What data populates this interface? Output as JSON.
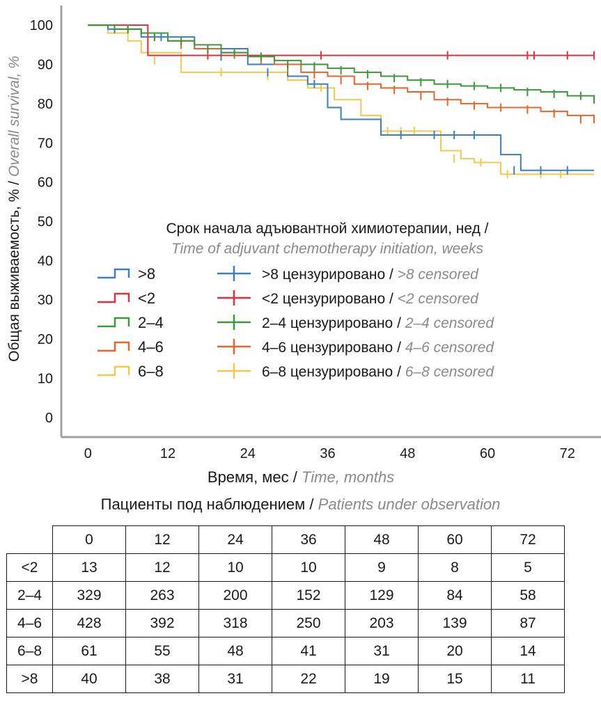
{
  "chart_data": {
    "type": "line",
    "step": true,
    "ylabel_ru": "Общая выживаемость, %",
    "ylabel_en": "Overall survival, %",
    "xlabel_ru": "Время, мес",
    "xlabel_en": "Time, months",
    "xlim": [
      -4,
      76
    ],
    "ylim": [
      -5,
      105
    ],
    "xticks": [
      0,
      12,
      24,
      36,
      48,
      60,
      72
    ],
    "yticks": [
      0,
      10,
      20,
      30,
      40,
      50,
      60,
      70,
      80,
      90,
      100
    ],
    "legend_title_ru": "Срок начала адъювантной химиотерапии, нед",
    "legend_title_en": "Time of adjuvant chemotherapy initiation, weeks",
    "legend_placement": "center",
    "series": [
      {
        "name": ">8",
        "censored_ru": ">8 цензурировано",
        "censored_en": ">8 censored",
        "color": "#3a7fc0",
        "x": [
          0,
          3,
          8,
          16,
          24,
          30,
          33,
          36,
          38,
          44,
          50,
          56,
          62,
          65,
          76
        ],
        "y": [
          100,
          99,
          97,
          94,
          90,
          87,
          85,
          79,
          76,
          72,
          72,
          72,
          67,
          63,
          63
        ],
        "censored_x": [
          4,
          11,
          20,
          27,
          34,
          47,
          52,
          55,
          58,
          64,
          68,
          72
        ],
        "censored_y": [
          99,
          97,
          92,
          88,
          85,
          72,
          72,
          72,
          72,
          63,
          63,
          63
        ]
      },
      {
        "name": "<2",
        "censored_ru": "<2 цензурировано",
        "censored_en": "<2 censored",
        "color": "#e0303e",
        "x": [
          0,
          5,
          9,
          76
        ],
        "y": [
          100,
          100,
          92.3,
          92.3
        ],
        "censored_x": [
          18,
          35,
          54,
          66,
          67,
          72,
          76
        ],
        "censored_y": [
          92.3,
          92.3,
          92.3,
          92.3,
          92.3,
          92.3,
          92.3
        ]
      },
      {
        "name": "2–4",
        "censored_ru": "2–4 цензурировано",
        "censored_en": "2–4 censored",
        "color": "#3a9a3a",
        "x": [
          0,
          4,
          8,
          12,
          16,
          20,
          24,
          28,
          32,
          36,
          40,
          44,
          48,
          52,
          56,
          60,
          64,
          68,
          72,
          76
        ],
        "y": [
          100,
          99,
          98,
          96,
          95,
          93,
          92,
          91,
          90,
          89,
          88,
          87,
          86,
          85,
          84.5,
          84,
          83.5,
          83,
          82,
          80
        ],
        "censored_x": [
          6,
          10,
          14,
          18,
          22,
          26,
          30,
          34,
          38,
          42,
          46,
          50,
          54,
          58,
          62,
          66,
          70,
          74
        ],
        "censored_y": [
          99,
          97,
          96,
          94,
          93,
          92,
          90,
          89.5,
          88.5,
          87.5,
          86.5,
          85.5,
          85,
          84.5,
          84,
          83,
          82.5,
          82
        ]
      },
      {
        "name": "4–6",
        "censored_ru": "4–6 цензурировано",
        "censored_en": "4–6 censored",
        "color": "#e8642c",
        "x": [
          0,
          4,
          8,
          12,
          16,
          20,
          24,
          28,
          32,
          36,
          40,
          44,
          48,
          52,
          56,
          60,
          64,
          68,
          72,
          76
        ],
        "y": [
          100,
          99,
          98,
          96,
          94,
          93,
          92,
          90,
          88,
          87,
          85,
          84,
          83,
          81,
          80,
          79,
          79,
          78,
          77,
          75
        ],
        "censored_x": [
          6,
          10,
          14,
          18,
          22,
          26,
          30,
          34,
          38,
          42,
          46,
          50,
          54,
          58,
          62,
          66,
          70,
          74
        ],
        "censored_y": [
          99,
          97,
          95,
          93.5,
          92.5,
          91,
          89,
          87.5,
          86,
          84.5,
          83.5,
          82,
          80.5,
          79.5,
          79,
          78.5,
          77.5,
          76
        ]
      },
      {
        "name": "6–8",
        "censored_ru": "6–8 цензурировано",
        "censored_en": "6–8 censored",
        "color": "#f2c94c",
        "x": [
          0,
          3,
          6,
          8,
          14,
          22,
          30,
          33,
          37,
          41,
          44,
          50,
          53,
          56,
          58,
          62,
          66,
          76
        ],
        "y": [
          100,
          98,
          96,
          93,
          88,
          88,
          86,
          84,
          81,
          77,
          73,
          73,
          68,
          66,
          65,
          62,
          62,
          62
        ],
        "censored_x": [
          10,
          20,
          27,
          35,
          45,
          47,
          49,
          55,
          59,
          63,
          68,
          71
        ],
        "censored_y": [
          91,
          88,
          87,
          84,
          73,
          73,
          73,
          66,
          65,
          62,
          62,
          62
        ]
      }
    ]
  },
  "table": {
    "title_ru": "Пациенты под наблюдением",
    "title_en": "Patients under observation",
    "columns": [
      "0",
      "12",
      "24",
      "36",
      "48",
      "60",
      "72"
    ],
    "rows": [
      {
        "label": "<2",
        "values": [
          "13",
          "12",
          "10",
          "10",
          "9",
          "8",
          "5"
        ]
      },
      {
        "label": "2–4",
        "values": [
          "329",
          "263",
          "200",
          "152",
          "129",
          "84",
          "58"
        ]
      },
      {
        "label": "4–6",
        "values": [
          "428",
          "392",
          "318",
          "250",
          "203",
          "139",
          "87"
        ]
      },
      {
        "label": "6–8",
        "values": [
          "61",
          "55",
          "48",
          "41",
          "31",
          "20",
          "14"
        ]
      },
      {
        "label": ">8",
        "values": [
          "40",
          "38",
          "31",
          "22",
          "19",
          "15",
          "11"
        ]
      }
    ]
  }
}
